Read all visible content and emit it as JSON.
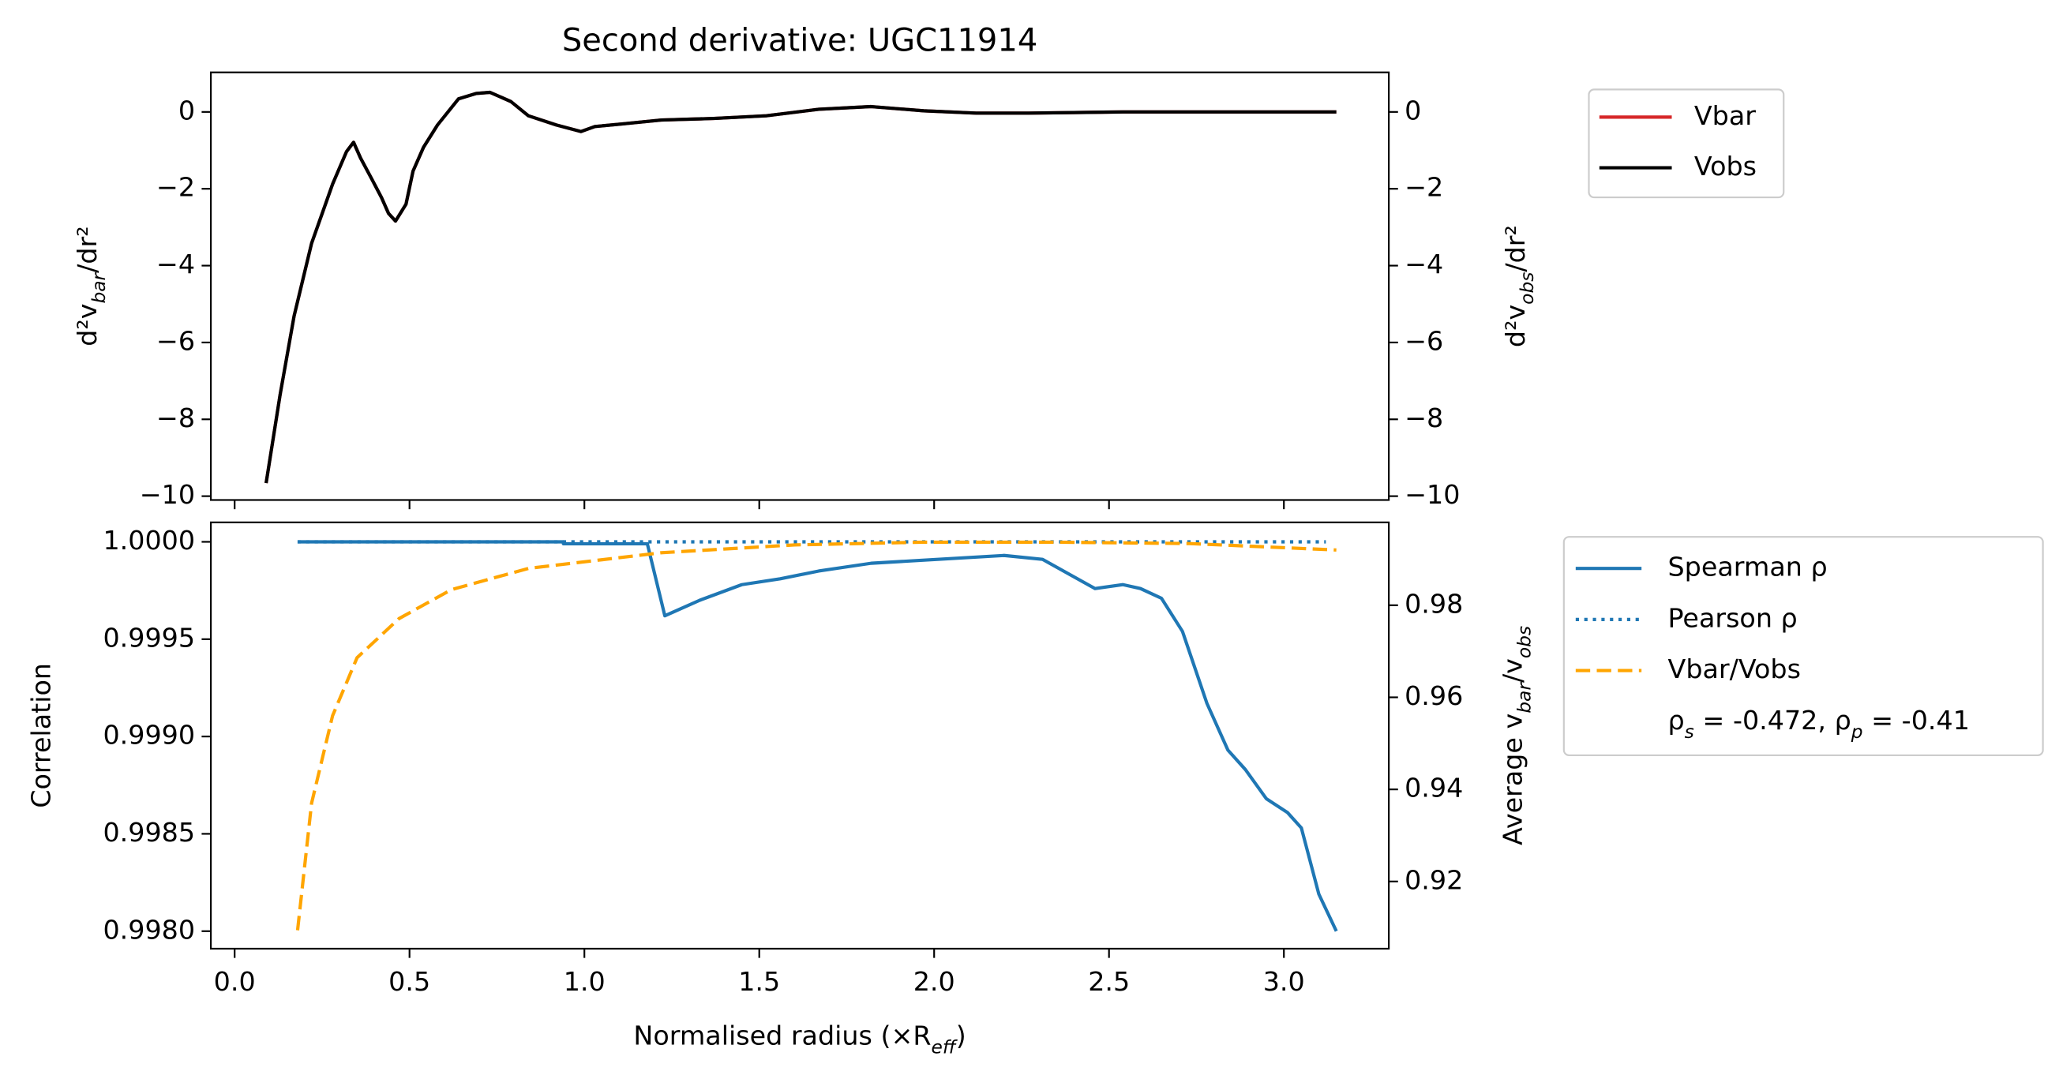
{
  "chart_data": [
    {
      "type": "line",
      "title": "Second derivative: UGC11914",
      "ylabel": [
        "d²v",
        "bar",
        "/dr²"
      ],
      "y2label": [
        "d²v",
        "obs",
        "/dr²"
      ],
      "ylabel_color": "#d62728",
      "ytick_color": "#d62728",
      "y2tick_color": "#000000",
      "xlim": [
        -0.068,
        3.3
      ],
      "xticks": [
        0,
        0.5,
        1,
        1.5,
        2,
        2.5,
        3
      ],
      "xtick_labels": false,
      "ylim": [
        -10.1,
        1.03
      ],
      "yticks": [
        {
          "value": -10,
          "label": "−10"
        },
        {
          "value": -8,
          "label": "−8"
        },
        {
          "value": -6,
          "label": "−6"
        },
        {
          "value": -4,
          "label": "−4"
        },
        {
          "value": -2,
          "label": "−2"
        },
        0
      ],
      "y2lim": [
        -10.1,
        1.03
      ],
      "y2ticks": [
        {
          "value": -10,
          "label": "−10"
        },
        {
          "value": -8,
          "label": "−8"
        },
        {
          "value": -6,
          "label": "−6"
        },
        {
          "value": -4,
          "label": "−4"
        },
        {
          "value": -2,
          "label": "−2"
        },
        0
      ],
      "series": [
        {
          "name": "Vbar",
          "color": "#d62728",
          "linestyle": "solid",
          "axis": "y",
          "x": [
            0.09,
            0.13,
            0.17,
            0.22,
            0.28,
            0.32,
            0.34,
            0.36,
            0.39,
            0.42,
            0.44,
            0.46,
            0.49,
            0.51,
            0.54,
            0.58,
            0.64,
            0.69,
            0.73,
            0.79,
            0.84,
            0.92,
            0.99,
            1.03,
            1.11,
            1.22,
            1.37,
            1.52,
            1.67,
            1.82,
            1.97,
            2.12,
            2.27,
            2.54,
            2.91,
            3.15
          ],
          "values": [
            -9.66,
            -7.36,
            -5.31,
            -3.42,
            -1.88,
            -1.03,
            -0.79,
            -1.2,
            -1.71,
            -2.23,
            -2.64,
            -2.84,
            -2.4,
            -1.54,
            -0.92,
            -0.34,
            0.34,
            0.48,
            0.51,
            0.27,
            -0.1,
            -0.34,
            -0.51,
            -0.38,
            -0.31,
            -0.21,
            -0.17,
            -0.1,
            0.07,
            0.14,
            0.03,
            -0.03,
            -0.03,
            0,
            0,
            0
          ]
        },
        {
          "name": "Vobs",
          "color": "#000000",
          "linestyle": "solid",
          "axis": "y2",
          "x": [
            0.09,
            0.13,
            0.17,
            0.22,
            0.28,
            0.32,
            0.34,
            0.36,
            0.39,
            0.42,
            0.44,
            0.46,
            0.49,
            0.51,
            0.54,
            0.58,
            0.64,
            0.69,
            0.73,
            0.79,
            0.84,
            0.92,
            0.99,
            1.03,
            1.11,
            1.22,
            1.37,
            1.52,
            1.67,
            1.82,
            1.97,
            2.12,
            2.27,
            2.54,
            2.91,
            3.15
          ],
          "values": [
            -9.66,
            -7.36,
            -5.31,
            -3.42,
            -1.88,
            -1.03,
            -0.79,
            -1.2,
            -1.71,
            -2.23,
            -2.64,
            -2.84,
            -2.4,
            -1.54,
            -0.92,
            -0.34,
            0.34,
            0.48,
            0.51,
            0.27,
            -0.1,
            -0.34,
            -0.51,
            -0.38,
            -0.31,
            -0.21,
            -0.17,
            -0.1,
            0.07,
            0.14,
            0.03,
            -0.03,
            -0.03,
            0,
            0,
            0
          ]
        }
      ]
    },
    {
      "type": "line",
      "xlabel": [
        "Normalised radius (×R",
        "eff",
        ")"
      ],
      "ylabel": [
        "Correlation"
      ],
      "y2label": [
        "Average v",
        "bar",
        "/v",
        "obs"
      ],
      "ylabel_color": "#000000",
      "ytick_color": "#1f77b4",
      "y2tick_color": "#ffa500",
      "xlim": [
        -0.068,
        3.3
      ],
      "xticks": [
        {
          "value": 0,
          "label": "0.0"
        },
        0.5,
        {
          "value": 1,
          "label": "1.0"
        },
        1.5,
        {
          "value": 2,
          "label": "2.0"
        },
        2.5,
        {
          "value": 3,
          "label": "3.0"
        }
      ],
      "ylim": [
        0.99791,
        1.0001
      ],
      "yticks": [
        {
          "value": 0.998,
          "label": "0.9980"
        },
        0.9985,
        {
          "value": 0.999,
          "label": "0.9990"
        },
        0.9995,
        {
          "value": 1,
          "label": "1.0000"
        }
      ],
      "y2lim": [
        0.9054,
        0.998
      ],
      "y2ticks": [
        0.92,
        0.94,
        0.96,
        0.98
      ],
      "series": [
        {
          "name": "Spearman ρ",
          "color": "#1f77b4",
          "linestyle": "solid",
          "axis": "y",
          "x": [
            0.18,
            0.94,
            0.94,
            1.18,
            1.23,
            1.33,
            1.45,
            1.56,
            1.67,
            1.82,
            2.01,
            2.2,
            2.31,
            2.39,
            2.46,
            2.54,
            2.59,
            2.65,
            2.71,
            2.78,
            2.84,
            2.89,
            2.95,
            3.01,
            3.05,
            3.1,
            3.15
          ],
          "values": [
            1.0,
            1.0,
            0.99999,
            0.99999,
            0.99962,
            0.9997,
            0.99978,
            0.99981,
            0.99985,
            0.99989,
            0.99991,
            0.99993,
            0.99991,
            0.99983,
            0.99976,
            0.99978,
            0.99976,
            0.99971,
            0.99954,
            0.99917,
            0.99893,
            0.99883,
            0.99868,
            0.99861,
            0.99853,
            0.99819,
            0.998
          ]
        },
        {
          "name": "Pearson ρ",
          "color": "#1f77b4",
          "linestyle": "dotted",
          "axis": "y",
          "x": [
            0.18,
            3.12
          ],
          "values": [
            1.0,
            1.0
          ]
        },
        {
          "name": "Vbar/Vobs",
          "color": "#ffa500",
          "linestyle": "dashed",
          "axis": "y2",
          "x": [
            0.18,
            0.22,
            0.28,
            0.35,
            0.47,
            0.62,
            0.84,
            1.22,
            1.6,
            1.97,
            2.35,
            2.73,
            3.15
          ],
          "values": [
            0.9094,
            0.937,
            0.956,
            0.9686,
            0.9771,
            0.9834,
            0.988,
            0.9914,
            0.9931,
            0.9937,
            0.9937,
            0.9934,
            0.992
          ]
        }
      ],
      "legend_note": [
        "ρ",
        "s",
        " = -0.472, ρ",
        "p",
        " = -0.41"
      ]
    }
  ]
}
